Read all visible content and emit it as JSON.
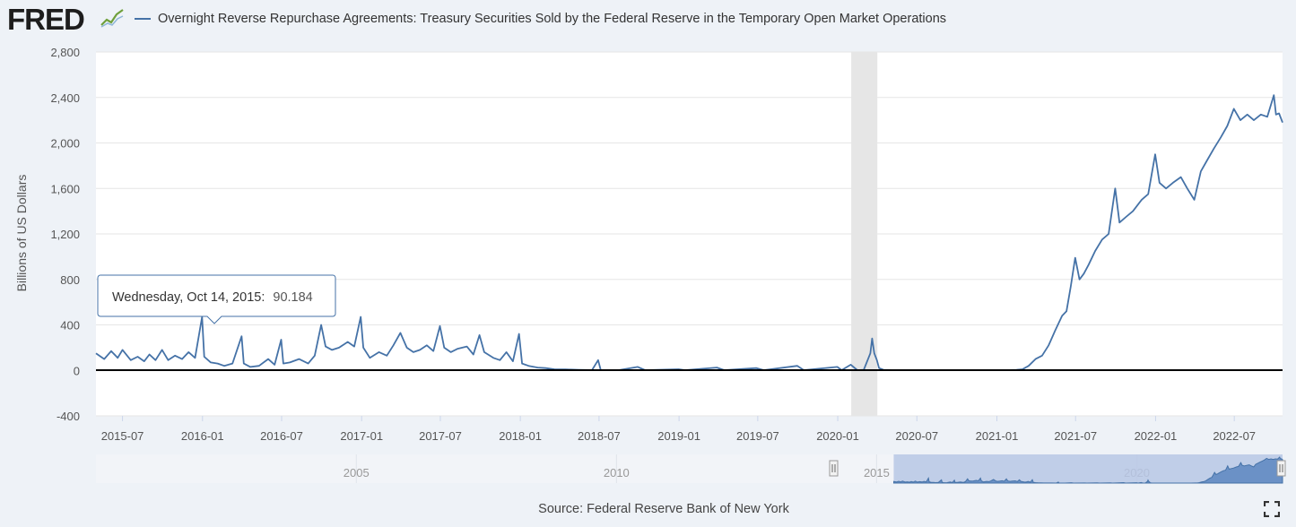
{
  "header": {
    "logo_text": "FRED",
    "logo_icon": "line-chart-icon",
    "legend_label": "Overnight Reverse Repurchase Agreements: Treasury Securities Sold by the Federal Reserve in the Temporary Open Market Operations"
  },
  "tooltip": {
    "date": "Wednesday, Oct 14, 2015:",
    "value": "90.184"
  },
  "source": "Source: Federal Reserve Bank of New York",
  "fullscreen_icon": "fullscreen-icon",
  "colors": {
    "series": "#4572a7",
    "background": "#eef2f7",
    "plot_background": "#ffffff",
    "recession_band": "#e6e6e6",
    "navigator_mask": "#b7c7e5",
    "zero_line": "#000000"
  },
  "chart_data": {
    "type": "line",
    "title": "",
    "ylabel": "Billions of US Dollars",
    "xlabel": "",
    "ylim": [
      -400,
      2800
    ],
    "yticks": [
      "-400",
      "0",
      "400",
      "800",
      "1,200",
      "1,600",
      "2,000",
      "2,400",
      "2,800"
    ],
    "xticks": [
      "2015-07",
      "2016-01",
      "2016-07",
      "2017-01",
      "2017-07",
      "2018-01",
      "2018-07",
      "2019-01",
      "2019-07",
      "2020-01",
      "2020-07",
      "2021-01",
      "2021-07",
      "2022-01",
      "2022-07"
    ],
    "xlim": [
      "2015-05-01",
      "2022-10-20"
    ],
    "grid": true,
    "recession_shading": [
      "2020-02-01",
      "2020-04-01"
    ],
    "series": [
      {
        "name": "Overnight Reverse Repurchase Agreements: Treasury Securities Sold by the Federal Reserve in the Temporary Open Market Operations",
        "points": [
          [
            "2015-05-01",
            150
          ],
          [
            "2015-05-20",
            100
          ],
          [
            "2015-06-05",
            170
          ],
          [
            "2015-06-20",
            110
          ],
          [
            "2015-07-01",
            180
          ],
          [
            "2015-07-20",
            90
          ],
          [
            "2015-08-05",
            120
          ],
          [
            "2015-08-20",
            80
          ],
          [
            "2015-09-01",
            140
          ],
          [
            "2015-09-15",
            90
          ],
          [
            "2015-09-30",
            180
          ],
          [
            "2015-10-14",
            90.184
          ],
          [
            "2015-10-30",
            130
          ],
          [
            "2015-11-15",
            100
          ],
          [
            "2015-11-30",
            160
          ],
          [
            "2015-12-15",
            110
          ],
          [
            "2015-12-31",
            470
          ],
          [
            "2016-01-05",
            120
          ],
          [
            "2016-01-20",
            70
          ],
          [
            "2016-02-05",
            60
          ],
          [
            "2016-02-20",
            40
          ],
          [
            "2016-03-10",
            60
          ],
          [
            "2016-03-31",
            300
          ],
          [
            "2016-04-05",
            60
          ],
          [
            "2016-04-20",
            30
          ],
          [
            "2016-05-10",
            40
          ],
          [
            "2016-05-31",
            100
          ],
          [
            "2016-06-15",
            50
          ],
          [
            "2016-06-30",
            270
          ],
          [
            "2016-07-05",
            60
          ],
          [
            "2016-07-20",
            70
          ],
          [
            "2016-08-10",
            100
          ],
          [
            "2016-08-31",
            60
          ],
          [
            "2016-09-15",
            130
          ],
          [
            "2016-09-30",
            400
          ],
          [
            "2016-10-10",
            210
          ],
          [
            "2016-10-25",
            180
          ],
          [
            "2016-11-10",
            200
          ],
          [
            "2016-11-30",
            250
          ],
          [
            "2016-12-15",
            210
          ],
          [
            "2016-12-30",
            470
          ],
          [
            "2017-01-05",
            200
          ],
          [
            "2017-01-20",
            110
          ],
          [
            "2017-02-10",
            160
          ],
          [
            "2017-02-28",
            130
          ],
          [
            "2017-03-15",
            220
          ],
          [
            "2017-03-31",
            330
          ],
          [
            "2017-04-15",
            200
          ],
          [
            "2017-04-30",
            160
          ],
          [
            "2017-05-15",
            180
          ],
          [
            "2017-05-31",
            220
          ],
          [
            "2017-06-15",
            170
          ],
          [
            "2017-06-30",
            390
          ],
          [
            "2017-07-10",
            200
          ],
          [
            "2017-07-25",
            160
          ],
          [
            "2017-08-10",
            190
          ],
          [
            "2017-08-31",
            210
          ],
          [
            "2017-09-15",
            140
          ],
          [
            "2017-09-29",
            310
          ],
          [
            "2017-10-10",
            160
          ],
          [
            "2017-10-31",
            110
          ],
          [
            "2017-11-15",
            90
          ],
          [
            "2017-11-30",
            160
          ],
          [
            "2017-12-15",
            80
          ],
          [
            "2017-12-29",
            320
          ],
          [
            "2018-01-05",
            60
          ],
          [
            "2018-01-20",
            40
          ],
          [
            "2018-02-10",
            25
          ],
          [
            "2018-02-28",
            20
          ],
          [
            "2018-03-20",
            10
          ],
          [
            "2018-04-15",
            8
          ],
          [
            "2018-05-15",
            5
          ],
          [
            "2018-06-15",
            3
          ],
          [
            "2018-06-29",
            90
          ],
          [
            "2018-07-05",
            3
          ],
          [
            "2018-08-15",
            2
          ],
          [
            "2018-09-28",
            30
          ],
          [
            "2018-10-15",
            2
          ],
          [
            "2018-12-31",
            10
          ],
          [
            "2019-01-15",
            2
          ],
          [
            "2019-03-29",
            25
          ],
          [
            "2019-04-15",
            2
          ],
          [
            "2019-06-28",
            20
          ],
          [
            "2019-07-15",
            2
          ],
          [
            "2019-09-30",
            40
          ],
          [
            "2019-10-15",
            2
          ],
          [
            "2019-12-31",
            30
          ],
          [
            "2020-01-10",
            2
          ],
          [
            "2020-01-31",
            50
          ],
          [
            "2020-02-15",
            2
          ],
          [
            "2020-03-01",
            5
          ],
          [
            "2020-03-16",
            150
          ],
          [
            "2020-03-20",
            280
          ],
          [
            "2020-03-25",
            150
          ],
          [
            "2020-03-31",
            90
          ],
          [
            "2020-04-05",
            20
          ],
          [
            "2020-04-15",
            5
          ],
          [
            "2020-05-15",
            2
          ],
          [
            "2020-07-15",
            1
          ],
          [
            "2020-10-15",
            1
          ],
          [
            "2021-01-15",
            1
          ],
          [
            "2021-02-15",
            5
          ],
          [
            "2021-03-01",
            10
          ],
          [
            "2021-03-15",
            40
          ],
          [
            "2021-03-31",
            100
          ],
          [
            "2021-04-15",
            130
          ],
          [
            "2021-04-30",
            220
          ],
          [
            "2021-05-15",
            350
          ],
          [
            "2021-05-31",
            480
          ],
          [
            "2021-06-10",
            520
          ],
          [
            "2021-06-20",
            740
          ],
          [
            "2021-06-30",
            990
          ],
          [
            "2021-07-10",
            800
          ],
          [
            "2021-07-20",
            850
          ],
          [
            "2021-07-31",
            930
          ],
          [
            "2021-08-15",
            1050
          ],
          [
            "2021-08-31",
            1150
          ],
          [
            "2021-09-15",
            1200
          ],
          [
            "2021-09-30",
            1600
          ],
          [
            "2021-10-10",
            1300
          ],
          [
            "2021-10-25",
            1350
          ],
          [
            "2021-11-10",
            1400
          ],
          [
            "2021-11-30",
            1500
          ],
          [
            "2021-12-15",
            1550
          ],
          [
            "2021-12-31",
            1900
          ],
          [
            "2022-01-10",
            1650
          ],
          [
            "2022-01-25",
            1600
          ],
          [
            "2022-02-10",
            1650
          ],
          [
            "2022-02-28",
            1700
          ],
          [
            "2022-03-15",
            1600
          ],
          [
            "2022-03-31",
            1500
          ],
          [
            "2022-04-15",
            1750
          ],
          [
            "2022-04-30",
            1850
          ],
          [
            "2022-05-15",
            1950
          ],
          [
            "2022-05-31",
            2050
          ],
          [
            "2022-06-15",
            2150
          ],
          [
            "2022-06-30",
            2300
          ],
          [
            "2022-07-15",
            2200
          ],
          [
            "2022-07-31",
            2250
          ],
          [
            "2022-08-15",
            2200
          ],
          [
            "2022-08-31",
            2250
          ],
          [
            "2022-09-15",
            2230
          ],
          [
            "2022-09-30",
            2420
          ],
          [
            "2022-10-05",
            2250
          ],
          [
            "2022-10-12",
            2260
          ],
          [
            "2022-10-20",
            2180
          ]
        ]
      }
    ],
    "navigator": {
      "xticks": [
        "2005",
        "2010",
        "2015",
        "2020"
      ],
      "selected_range": [
        "2015-05-01",
        "2022-10-20"
      ]
    }
  }
}
